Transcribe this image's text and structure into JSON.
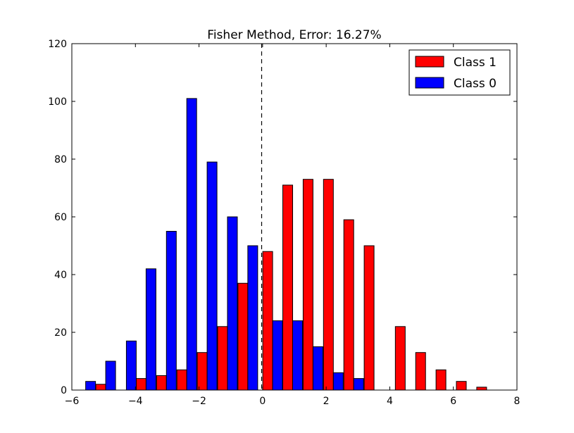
{
  "chart_data": {
    "type": "bar",
    "title": "Fisher Method, Error: 16.27%",
    "xlabel": "",
    "ylabel": "",
    "xlim": [
      -6,
      8
    ],
    "ylim": [
      0,
      120
    ],
    "x_ticks": [
      -6,
      -4,
      -2,
      0,
      2,
      4,
      6,
      8
    ],
    "x_tick_labels": [
      "−6",
      "−4",
      "−2",
      "0",
      "2",
      "4",
      "6",
      "8"
    ],
    "y_ticks": [
      0,
      20,
      40,
      60,
      80,
      100,
      120
    ],
    "y_tick_labels": [
      "0",
      "20",
      "40",
      "60",
      "80",
      "100",
      "120"
    ],
    "grid": false,
    "legend_position": "top-right",
    "threshold_line": {
      "x": -0.03,
      "style": "dashed",
      "color": "#000000"
    },
    "series": [
      {
        "name": "Class 1",
        "color": "#ff0000",
        "bins": [
          {
            "x0": -5.875,
            "x1": -5.565,
            "value": 0
          },
          {
            "x0": -5.245,
            "x1": -4.935,
            "value": 2
          },
          {
            "x0": -3.975,
            "x1": -3.665,
            "value": 4
          },
          {
            "x0": -3.335,
            "x1": -3.025,
            "value": 5
          },
          {
            "x0": -2.695,
            "x1": -2.385,
            "value": 7
          },
          {
            "x0": -2.055,
            "x1": -1.745,
            "value": 13
          },
          {
            "x0": -1.415,
            "x1": -1.105,
            "value": 22
          },
          {
            "x0": -0.775,
            "x1": -0.465,
            "value": 37
          },
          {
            "x0": 0.005,
            "x1": 0.315,
            "value": 48
          },
          {
            "x0": 0.635,
            "x1": 0.945,
            "value": 71
          },
          {
            "x0": 1.275,
            "x1": 1.585,
            "value": 73
          },
          {
            "x0": 1.915,
            "x1": 2.225,
            "value": 73
          },
          {
            "x0": 2.555,
            "x1": 2.865,
            "value": 59
          },
          {
            "x0": 3.195,
            "x1": 3.505,
            "value": 50
          },
          {
            "x0": 3.835,
            "x1": 4.145,
            "value": 0
          },
          {
            "x0": 4.175,
            "x1": 4.485,
            "value": 22
          },
          {
            "x0": 4.815,
            "x1": 5.125,
            "value": 13
          },
          {
            "x0": 5.455,
            "x1": 5.765,
            "value": 7
          },
          {
            "x0": 6.095,
            "x1": 6.405,
            "value": 3
          },
          {
            "x0": 6.735,
            "x1": 7.045,
            "value": 1
          }
        ]
      },
      {
        "name": "Class 0",
        "color": "#0000ff",
        "bins": [
          {
            "x0": -5.565,
            "x1": -5.255,
            "value": 3
          },
          {
            "x0": -4.935,
            "x1": -4.625,
            "value": 10
          },
          {
            "x0": -4.285,
            "x1": -3.975,
            "value": 17
          },
          {
            "x0": -3.665,
            "x1": -3.355,
            "value": 42
          },
          {
            "x0": -3.025,
            "x1": -2.715,
            "value": 55
          },
          {
            "x0": -2.385,
            "x1": -2.075,
            "value": 101
          },
          {
            "x0": -1.745,
            "x1": -1.435,
            "value": 79
          },
          {
            "x0": -1.105,
            "x1": -0.795,
            "value": 60
          },
          {
            "x0": -0.465,
            "x1": -0.155,
            "value": 50
          },
          {
            "x0": 0.315,
            "x1": 0.625,
            "value": 24
          },
          {
            "x0": 0.945,
            "x1": 1.255,
            "value": 24
          },
          {
            "x0": 1.585,
            "x1": 1.895,
            "value": 15
          },
          {
            "x0": 2.225,
            "x1": 2.535,
            "value": 6
          },
          {
            "x0": 2.865,
            "x1": 3.175,
            "value": 4
          }
        ]
      }
    ],
    "legend": [
      {
        "label": "Class 1",
        "color": "#ff0000"
      },
      {
        "label": "Class 0",
        "color": "#0000ff"
      }
    ]
  }
}
